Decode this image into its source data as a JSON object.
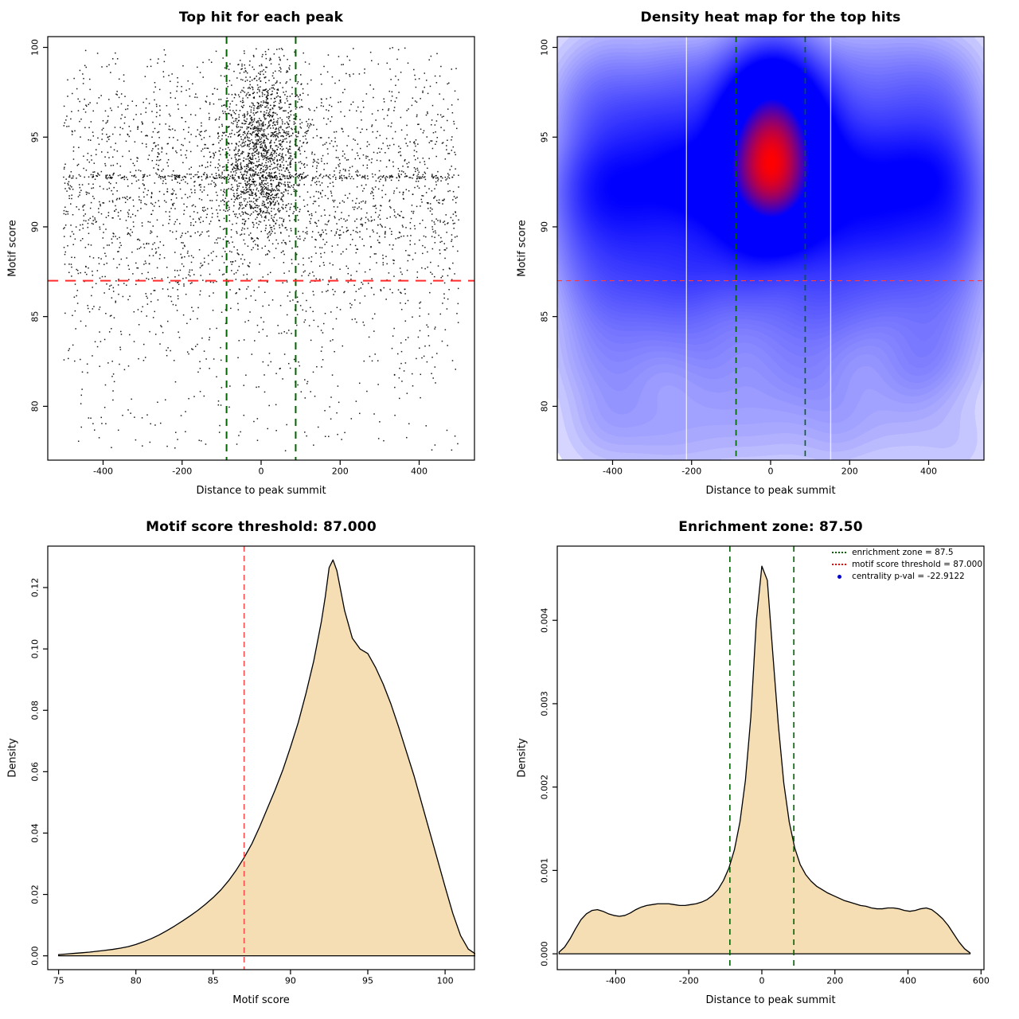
{
  "figure": {
    "background": "#FFFFFF"
  },
  "chart_data": [
    {
      "id": "top-hit-scatter",
      "type": "scatter",
      "title": "Top hit for each peak",
      "xlabel": "Distance to peak summit",
      "ylabel": "Motif score",
      "xlim": [
        -540,
        540
      ],
      "ylim": [
        77.0,
        100.6
      ],
      "xticks": [
        -400,
        -200,
        0,
        200,
        400
      ],
      "xtick_labels": [
        "-400",
        "-200",
        "0",
        "200",
        "400"
      ],
      "yticks": [
        80,
        85,
        90,
        95,
        100
      ],
      "ytick_labels": [
        "80",
        "85",
        "90",
        "95",
        "100"
      ],
      "grid": false,
      "points_style": {
        "color": "#000000",
        "size": 1.5
      },
      "motif_score_threshold": 87.0,
      "enrichment_zone": [
        -87.5,
        87.5
      ],
      "ref_lines": [
        {
          "name": "enrichment-zone-left",
          "orientation": "vertical",
          "value": -87.5,
          "color": "#006400",
          "width": 2,
          "dash": [
            9,
            7
          ]
        },
        {
          "name": "enrichment-zone-right",
          "orientation": "vertical",
          "value": 87.5,
          "color": "#006400",
          "width": 2,
          "dash": [
            9,
            7
          ]
        },
        {
          "name": "motif-score-threshold",
          "orientation": "horizontal",
          "value": 87.0,
          "color": "#FF2A2A",
          "width": 2,
          "dash": [
            13,
            9
          ]
        }
      ],
      "point_generation": {
        "seed": 71,
        "groups": [
          {
            "name": "background",
            "n": 2450,
            "x": {
              "dist": "uniform",
              "min": -500,
              "max": 500
            },
            "y": {
              "dist": "normal",
              "mean": 92.2,
              "sd": 4.0,
              "min": 77.3,
              "max": 100.0
            }
          },
          {
            "name": "low-score-tail",
            "n": 320,
            "x": {
              "dist": "uniform",
              "min": -500,
              "max": 500
            },
            "y": {
              "dist": "uniform",
              "min": 77.5,
              "max": 87.5
            }
          },
          {
            "name": "central-cluster",
            "n": 1450,
            "x": {
              "dist": "normal",
              "mean": 3,
              "sd": 52,
              "min": -165,
              "max": 170
            },
            "y": {
              "dist": "normal",
              "mean": 94.3,
              "sd": 2.5,
              "min": 87.8,
              "max": 100.0
            }
          },
          {
            "name": "score-band",
            "n": 290,
            "x": {
              "dist": "uniform",
              "min": -500,
              "max": 500
            },
            "y": {
              "dist": "normal",
              "mean": 92.8,
              "sd": 0.07,
              "min": 92.55,
              "max": 93.05
            }
          }
        ]
      }
    },
    {
      "id": "top-hit-density-heatmap",
      "type": "heatmap",
      "title": "Density heat map for the top hits",
      "xlabel": "Distance to peak summit",
      "ylabel": "Motif score",
      "xlim": [
        -540,
        540
      ],
      "ylim": [
        77.0,
        100.6
      ],
      "xticks": [
        -400,
        -200,
        0,
        200,
        400
      ],
      "xtick_labels": [
        "-400",
        "-200",
        "0",
        "200",
        "400"
      ],
      "yticks": [
        80,
        85,
        90,
        95,
        100
      ],
      "ytick_labels": [
        "80",
        "85",
        "90",
        "95",
        "100"
      ],
      "colormap": {
        "low": "#FFFFFF",
        "mid": "#0000FF",
        "high": "#FF0000"
      },
      "bandwidth": {
        "x": 58,
        "y": 1.5
      },
      "point_generation_ref": 0,
      "white_seams_x": [
        -213,
        152
      ],
      "motif_score_threshold": 87.0,
      "enrichment_zone": [
        -87.5,
        87.5
      ],
      "ref_lines": [
        {
          "name": "enrichment-zone-left",
          "orientation": "vertical",
          "value": -87.5,
          "color": "#006400",
          "width": 1.6,
          "dash": [
            7,
            6
          ]
        },
        {
          "name": "enrichment-zone-right",
          "orientation": "vertical",
          "value": 87.5,
          "color": "#006400",
          "width": 1.6,
          "dash": [
            7,
            6
          ]
        },
        {
          "name": "motif-score-threshold",
          "orientation": "horizontal",
          "value": 87.0,
          "color": "#FF3B3B",
          "width": 1.2,
          "dash": [
            6,
            5
          ]
        }
      ]
    },
    {
      "id": "motif-score-density",
      "type": "area",
      "title": "Motif score threshold: 87.000",
      "xlabel": "Motif score",
      "ylabel": "Density",
      "xlim": [
        74.3,
        101.9
      ],
      "ylim": [
        -0.0045,
        0.1335
      ],
      "xticks": [
        75,
        80,
        85,
        90,
        95,
        100
      ],
      "xtick_labels": [
        "75",
        "80",
        "85",
        "90",
        "95",
        "100"
      ],
      "yticks": [
        0,
        0.02,
        0.04,
        0.06,
        0.08,
        0.1,
        0.12
      ],
      "ytick_labels": [
        "0.00",
        "0.02",
        "0.04",
        "0.06",
        "0.08",
        "0.10",
        "0.12"
      ],
      "fill_color": "#F5DEB3",
      "line_color": "#000000",
      "motif_score_threshold": 87.0,
      "ref_lines": [
        {
          "name": "motif-score-threshold",
          "orientation": "vertical",
          "value": 87.0,
          "color": "#FF4747",
          "width": 1.5,
          "dash": [
            7,
            5
          ]
        }
      ],
      "curve": {
        "x": [
          75,
          75.5,
          76,
          76.5,
          77,
          77.5,
          78,
          78.5,
          79,
          79.5,
          80,
          80.5,
          81,
          81.5,
          82,
          82.5,
          83,
          83.5,
          84,
          84.5,
          85,
          85.5,
          86,
          86.5,
          87,
          87.5,
          88,
          88.5,
          89,
          89.5,
          90,
          90.5,
          91,
          91.5,
          92,
          92.25,
          92.5,
          92.75,
          93,
          93.25,
          93.5,
          94,
          94.5,
          95,
          95.5,
          96,
          96.5,
          97,
          97.5,
          98,
          98.5,
          99,
          99.5,
          100,
          100.5,
          101,
          101.5,
          102
        ],
        "y": [
          0.0004,
          0.0006,
          0.0008,
          0.001,
          0.0012,
          0.0015,
          0.0018,
          0.0021,
          0.0025,
          0.003,
          0.0037,
          0.0046,
          0.0056,
          0.0068,
          0.0082,
          0.0097,
          0.0113,
          0.013,
          0.0148,
          0.0168,
          0.019,
          0.0215,
          0.0245,
          0.028,
          0.032,
          0.0365,
          0.042,
          0.048,
          0.054,
          0.0605,
          0.068,
          0.076,
          0.0855,
          0.096,
          0.109,
          0.117,
          0.1265,
          0.129,
          0.1255,
          0.119,
          0.1125,
          0.1035,
          0.1,
          0.0985,
          0.094,
          0.0885,
          0.082,
          0.0745,
          0.0665,
          0.0585,
          0.0495,
          0.0405,
          0.0315,
          0.0225,
          0.0138,
          0.0066,
          0.0022,
          0.0005
        ]
      }
    },
    {
      "id": "summit-distance-density",
      "type": "area",
      "title": "Enrichment zone: 87.50",
      "xlabel": "Distance to peak summit",
      "ylabel": "Density",
      "xlim": [
        -560,
        608
      ],
      "ylim": [
        -0.00019,
        0.00489
      ],
      "xticks": [
        -400,
        -200,
        0,
        200,
        400,
        600
      ],
      "xtick_labels": [
        "-400",
        "-200",
        "0",
        "200",
        "400",
        "600"
      ],
      "yticks": [
        0,
        0.001,
        0.002,
        0.003,
        0.004
      ],
      "ytick_labels": [
        "0.000",
        "0.001",
        "0.002",
        "0.003",
        "0.004"
      ],
      "fill_color": "#F5DEB3",
      "line_color": "#000000",
      "enrichment_zone": [
        -87.5,
        87.5
      ],
      "ref_lines": [
        {
          "name": "enrichment-zone-left",
          "orientation": "vertical",
          "value": -87.5,
          "color": "#006400",
          "width": 1.6,
          "dash": [
            7,
            6
          ]
        },
        {
          "name": "enrichment-zone-right",
          "orientation": "vertical",
          "value": 87.5,
          "color": "#006400",
          "width": 1.6,
          "dash": [
            7,
            6
          ]
        }
      ],
      "legend": {
        "position": "top-right",
        "items": [
          {
            "label": "enrichment zone = 87.5",
            "color": "#006400",
            "marker": "dotted-line"
          },
          {
            "label": "motif score threshold = 87.000",
            "color": "#FF0000",
            "marker": "dotted-line"
          },
          {
            "label": "centrality p-val = -22.9122",
            "color": "#0000CD",
            "marker": "dot"
          }
        ]
      },
      "curve": {
        "x": [
          -555,
          -540,
          -525,
          -510,
          -495,
          -480,
          -465,
          -450,
          -435,
          -420,
          -405,
          -390,
          -375,
          -360,
          -345,
          -330,
          -315,
          -300,
          -285,
          -270,
          -255,
          -240,
          -225,
          -210,
          -195,
          -180,
          -165,
          -150,
          -135,
          -120,
          -105,
          -90,
          -75,
          -60,
          -45,
          -30,
          -15,
          0,
          15,
          30,
          45,
          60,
          75,
          90,
          105,
          120,
          135,
          150,
          165,
          180,
          195,
          210,
          225,
          240,
          255,
          270,
          285,
          300,
          315,
          330,
          345,
          360,
          375,
          390,
          405,
          420,
          435,
          450,
          465,
          480,
          495,
          510,
          525,
          540,
          555,
          570
        ],
        "y": [
          2e-05,
          8e-05,
          0.00018,
          0.0003,
          0.00041,
          0.00048,
          0.00052,
          0.00053,
          0.00051,
          0.00048,
          0.00046,
          0.00045,
          0.00046,
          0.00049,
          0.00053,
          0.00056,
          0.00058,
          0.00059,
          0.0006,
          0.0006,
          0.0006,
          0.00059,
          0.00058,
          0.00058,
          0.00059,
          0.0006,
          0.00062,
          0.00065,
          0.0007,
          0.00077,
          0.00088,
          0.00103,
          0.00125,
          0.00158,
          0.00208,
          0.00285,
          0.004,
          0.00465,
          0.00448,
          0.0036,
          0.00275,
          0.00205,
          0.00158,
          0.00127,
          0.00107,
          0.00095,
          0.00087,
          0.00081,
          0.00077,
          0.00073,
          0.0007,
          0.00067,
          0.00064,
          0.00062,
          0.0006,
          0.00058,
          0.00057,
          0.00055,
          0.00054,
          0.00054,
          0.00055,
          0.00055,
          0.00054,
          0.00052,
          0.00051,
          0.00052,
          0.00054,
          0.00055,
          0.00053,
          0.00048,
          0.00042,
          0.00034,
          0.00024,
          0.00014,
          6e-05,
          1e-05
        ]
      }
    }
  ]
}
